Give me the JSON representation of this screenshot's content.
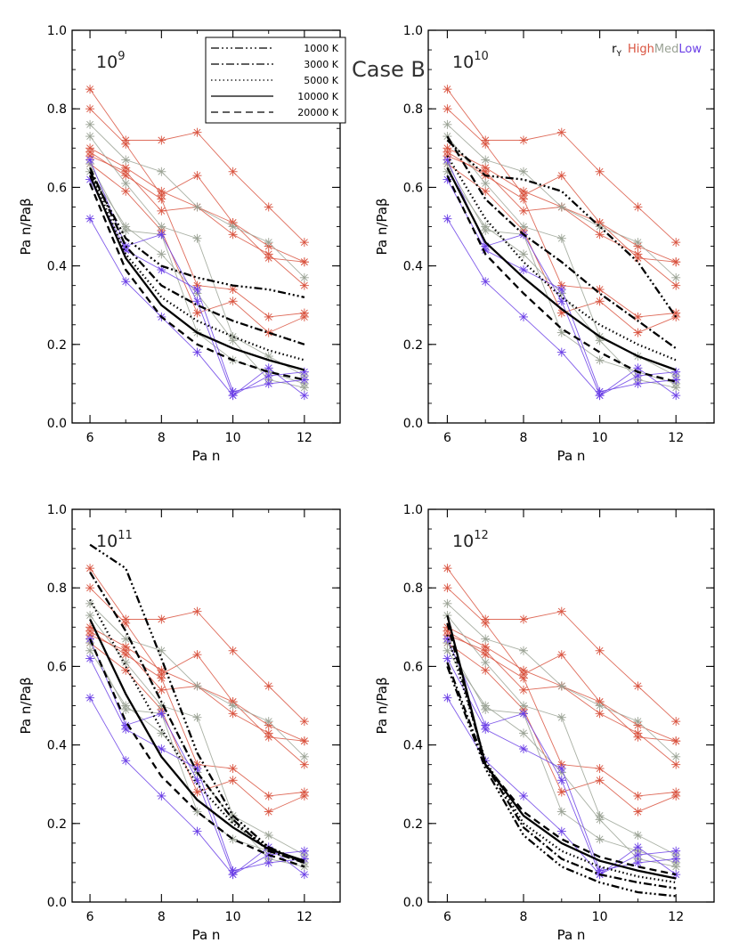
{
  "title": "Case B",
  "legend": {
    "entries": [
      {
        "label": "1000 K",
        "dash": "9,3,2,3,2,3,2,3"
      },
      {
        "label": "3000 K",
        "dash": "9,3,2,3"
      },
      {
        "label": "5000 K",
        "dash": "1.5,3"
      },
      {
        "label": "10000 K",
        "dash": ""
      },
      {
        "label": "20000 K",
        "dash": "8,5"
      }
    ]
  },
  "ry_key": {
    "label": "r",
    "subscript": "Y",
    "items": [
      {
        "label": "High",
        "color": "#d9533f"
      },
      {
        "label": "Med",
        "color": "#9aa294"
      },
      {
        "label": "Low",
        "color": "#6a3ee6"
      }
    ]
  },
  "colors": {
    "high": "#d9533f",
    "med": "#9aa294",
    "low": "#6a3ee6",
    "model": "#000000"
  },
  "chart_data": [
    {
      "type": "line",
      "label_base": "10",
      "label_exp": "9",
      "xlabel": "Pa n",
      "ylabel": "Pa n/Paβ",
      "xlim": [
        5.5,
        13
      ],
      "ylim": [
        0.0,
        1.0
      ],
      "xticks": [
        6,
        8,
        10,
        12
      ],
      "yticks": [
        0.0,
        0.2,
        0.4,
        0.6,
        0.8,
        1.0
      ],
      "x": [
        6,
        7,
        8,
        9,
        10,
        11,
        12
      ],
      "model_series": [
        {
          "name": "1000 K",
          "values": [
            0.64,
            0.47,
            0.4,
            0.37,
            0.35,
            0.34,
            0.32
          ]
        },
        {
          "name": "3000 K",
          "values": [
            0.65,
            0.45,
            0.35,
            0.3,
            0.26,
            0.23,
            0.2
          ]
        },
        {
          "name": "5000 K",
          "values": [
            0.64,
            0.43,
            0.32,
            0.26,
            0.22,
            0.185,
            0.16
          ]
        },
        {
          "name": "10000 K",
          "values": [
            0.63,
            0.42,
            0.3,
            0.23,
            0.19,
            0.16,
            0.135
          ]
        },
        {
          "name": "20000 K",
          "values": [
            0.61,
            0.39,
            0.27,
            0.2,
            0.16,
            0.13,
            0.11
          ]
        }
      ]
    },
    {
      "type": "line",
      "label_base": "10",
      "label_exp": "10",
      "xlabel": "Pa n",
      "ylabel": "Pa n/Paβ",
      "xlim": [
        5.5,
        13
      ],
      "ylim": [
        0.0,
        1.0
      ],
      "xticks": [
        6,
        8,
        10,
        12
      ],
      "yticks": [
        0.0,
        0.2,
        0.4,
        0.6,
        0.8,
        1.0
      ],
      "x": [
        6,
        7,
        8,
        9,
        10,
        11,
        12
      ],
      "model_series": [
        {
          "name": "1000 K",
          "values": [
            0.72,
            0.63,
            0.62,
            0.59,
            0.5,
            0.41,
            0.27
          ]
        },
        {
          "name": "3000 K",
          "values": [
            0.73,
            0.57,
            0.48,
            0.41,
            0.33,
            0.26,
            0.19
          ]
        },
        {
          "name": "5000 K",
          "values": [
            0.68,
            0.52,
            0.41,
            0.32,
            0.25,
            0.2,
            0.16
          ]
        },
        {
          "name": "10000 K",
          "values": [
            0.65,
            0.46,
            0.37,
            0.29,
            0.22,
            0.17,
            0.135
          ]
        },
        {
          "name": "20000 K",
          "values": [
            0.63,
            0.43,
            0.33,
            0.24,
            0.18,
            0.13,
            0.105
          ]
        }
      ]
    },
    {
      "type": "line",
      "label_base": "10",
      "label_exp": "11",
      "xlabel": "Pa n",
      "ylabel": "Pa n/Paβ",
      "xlim": [
        5.5,
        13
      ],
      "ylim": [
        0.0,
        1.0
      ],
      "xticks": [
        6,
        8,
        10,
        12
      ],
      "yticks": [
        0.0,
        0.2,
        0.4,
        0.6,
        0.8,
        1.0
      ],
      "x": [
        6,
        7,
        8,
        9,
        10,
        11,
        12
      ],
      "model_series": [
        {
          "name": "1000 K",
          "values": [
            0.91,
            0.85,
            0.62,
            0.38,
            0.22,
            0.14,
            0.1
          ]
        },
        {
          "name": "3000 K",
          "values": [
            0.84,
            0.69,
            0.51,
            0.33,
            0.21,
            0.13,
            0.1
          ]
        },
        {
          "name": "5000 K",
          "values": [
            0.77,
            0.6,
            0.44,
            0.3,
            0.2,
            0.14,
            0.1
          ]
        },
        {
          "name": "10000 K",
          "values": [
            0.72,
            0.53,
            0.37,
            0.26,
            0.19,
            0.135,
            0.105
          ]
        },
        {
          "name": "20000 K",
          "values": [
            0.67,
            0.46,
            0.32,
            0.23,
            0.16,
            0.12,
            0.09
          ]
        }
      ]
    },
    {
      "type": "line",
      "label_base": "10",
      "label_exp": "12",
      "xlabel": "Pa n",
      "ylabel": "Pa n/Paβ",
      "xlim": [
        5.5,
        13
      ],
      "ylim": [
        0.0,
        1.0
      ],
      "xticks": [
        6,
        8,
        10,
        12
      ],
      "yticks": [
        0.0,
        0.2,
        0.4,
        0.6,
        0.8,
        1.0
      ],
      "x": [
        6,
        7,
        8,
        9,
        10,
        11,
        12
      ],
      "model_series": [
        {
          "name": "1000 K",
          "values": [
            0.6,
            0.34,
            0.17,
            0.09,
            0.05,
            0.025,
            0.015
          ]
        },
        {
          "name": "3000 K",
          "values": [
            0.61,
            0.35,
            0.19,
            0.11,
            0.07,
            0.05,
            0.035
          ]
        },
        {
          "name": "5000 K",
          "values": [
            0.68,
            0.36,
            0.2,
            0.13,
            0.09,
            0.065,
            0.05
          ]
        },
        {
          "name": "10000 K",
          "values": [
            0.73,
            0.35,
            0.22,
            0.15,
            0.105,
            0.08,
            0.06
          ]
        },
        {
          "name": "20000 K",
          "values": [
            0.71,
            0.35,
            0.23,
            0.16,
            0.115,
            0.09,
            0.07
          ]
        }
      ]
    }
  ],
  "observed_series": [
    {
      "group": "high",
      "points": [
        [
          6,
          0.85
        ],
        [
          7,
          0.72
        ],
        [
          8,
          0.72
        ],
        [
          9,
          0.74
        ],
        [
          10,
          0.64
        ],
        [
          11,
          0.55
        ],
        [
          12,
          0.46
        ]
      ]
    },
    {
      "group": "high",
      "points": [
        [
          6,
          0.8
        ],
        [
          7,
          0.71
        ],
        [
          8,
          0.58
        ],
        [
          9,
          0.63
        ],
        [
          10,
          0.51
        ],
        [
          11,
          0.42
        ],
        [
          12,
          0.41
        ]
      ]
    },
    {
      "group": "high",
      "points": [
        [
          6,
          0.7
        ],
        [
          7,
          0.65
        ],
        [
          8,
          0.59
        ],
        [
          9,
          0.55
        ],
        [
          10,
          0.51
        ],
        [
          11,
          0.45
        ],
        [
          12,
          0.41
        ]
      ]
    },
    {
      "group": "high",
      "points": [
        [
          6,
          0.68
        ],
        [
          7,
          0.64
        ],
        [
          8,
          0.54
        ],
        [
          9,
          0.55
        ],
        [
          10,
          0.48
        ],
        [
          11,
          0.43
        ],
        [
          12,
          0.35
        ]
      ]
    },
    {
      "group": "high",
      "points": [
        [
          6,
          0.69
        ],
        [
          7,
          0.63
        ],
        [
          8,
          0.57
        ],
        [
          9,
          0.35
        ],
        [
          10,
          0.34
        ],
        [
          11,
          0.27
        ],
        [
          12,
          0.28
        ]
      ]
    },
    {
      "group": "high",
      "points": [
        [
          6,
          0.66
        ],
        [
          7,
          0.59
        ],
        [
          8,
          0.49
        ],
        [
          9,
          0.28
        ],
        [
          10,
          0.31
        ],
        [
          11,
          0.23
        ],
        [
          12,
          0.27
        ]
      ]
    },
    {
      "group": "med",
      "points": [
        [
          6,
          0.76
        ],
        [
          7,
          0.67
        ],
        [
          8,
          0.64
        ],
        [
          9,
          0.55
        ],
        [
          10,
          0.5
        ],
        [
          11,
          0.46
        ],
        [
          12,
          0.37
        ]
      ]
    },
    {
      "group": "med",
      "points": [
        [
          6,
          0.73
        ],
        [
          7,
          0.61
        ],
        [
          8,
          0.5
        ],
        [
          9,
          0.47
        ],
        [
          10,
          0.22
        ],
        [
          11,
          0.17
        ],
        [
          12,
          0.12
        ]
      ]
    },
    {
      "group": "med",
      "points": [
        [
          6,
          0.66
        ],
        [
          7,
          0.49
        ],
        [
          8,
          0.48
        ],
        [
          9,
          0.23
        ],
        [
          10,
          0.16
        ],
        [
          11,
          0.13
        ],
        [
          12,
          0.1
        ]
      ]
    },
    {
      "group": "med",
      "points": [
        [
          6,
          0.64
        ],
        [
          7,
          0.5
        ],
        [
          8,
          0.43
        ],
        [
          9,
          0.33
        ],
        [
          10,
          0.21
        ],
        [
          11,
          0.11
        ],
        [
          12,
          0.09
        ]
      ]
    },
    {
      "group": "low",
      "points": [
        [
          6,
          0.67
        ],
        [
          7,
          0.45
        ],
        [
          8,
          0.48
        ],
        [
          9,
          0.31
        ],
        [
          10,
          0.07
        ],
        [
          11,
          0.12
        ],
        [
          12,
          0.13
        ]
      ]
    },
    {
      "group": "low",
      "points": [
        [
          6,
          0.62
        ],
        [
          7,
          0.44
        ],
        [
          8,
          0.39
        ],
        [
          9,
          0.34
        ],
        [
          10,
          0.08
        ],
        [
          11,
          0.1
        ],
        [
          12,
          0.11
        ]
      ]
    },
    {
      "group": "low",
      "points": [
        [
          6,
          0.52
        ],
        [
          7,
          0.36
        ],
        [
          8,
          0.27
        ],
        [
          9,
          0.18
        ],
        [
          10,
          0.07
        ],
        [
          11,
          0.14
        ],
        [
          12,
          0.07
        ]
      ]
    }
  ]
}
